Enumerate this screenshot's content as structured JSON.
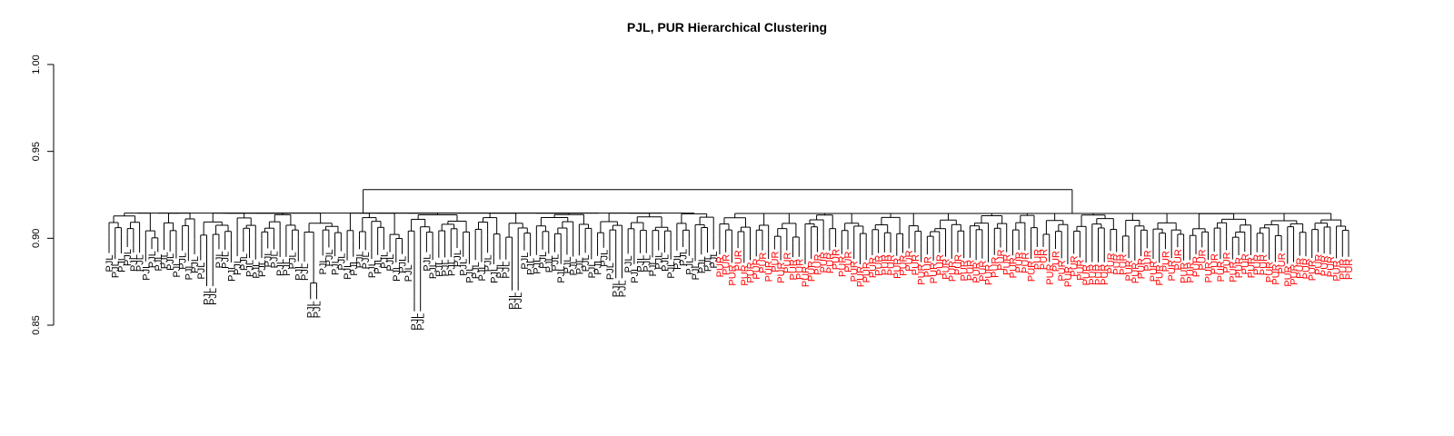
{
  "chart_data": {
    "type": "dendrogram",
    "title": "PJL, PUR Hierarchical Clustering",
    "xlabel": "",
    "ylabel": "",
    "ylim": [
      0.85,
      1.0
    ],
    "y_ticks": [
      {
        "value": 0.85,
        "label": "0.85"
      },
      {
        "value": 0.9,
        "label": "0.90"
      },
      {
        "value": 0.95,
        "label": "0.95"
      },
      {
        "value": 1.0,
        "label": "1.00"
      }
    ],
    "grid": false,
    "legend": "none",
    "colors": {
      "PJL": "#000000",
      "PUR": "#ff0000"
    },
    "groups": [
      {
        "name": "PJL",
        "leaf_count": 100,
        "merge_height": 0.9145
      },
      {
        "name": "PUR",
        "leaf_count": 104,
        "merge_height": 0.9143
      }
    ],
    "root_height": 0.928,
    "outlier_clusters": [
      {
        "label": "PJL",
        "height": 0.8725,
        "leaves": 2
      },
      {
        "label": "PJL",
        "height": 0.865,
        "leaves": 2
      },
      {
        "label": "PJL",
        "height": 0.858,
        "leaves": 2
      },
      {
        "label": "PJL",
        "height": 0.87,
        "leaves": 2
      },
      {
        "label": "PJL",
        "height": 0.877,
        "leaves": 2
      },
      {
        "label": "PUR",
        "height": 0.895,
        "leaves": 2
      }
    ]
  }
}
